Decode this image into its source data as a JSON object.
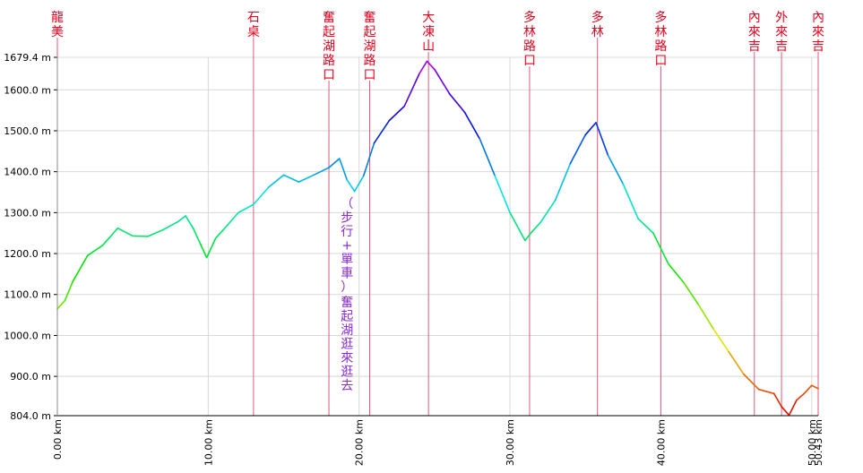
{
  "chart_data": {
    "type": "line",
    "title": "",
    "xlabel": "",
    "ylabel": "",
    "xlim": [
      0,
      50.43
    ],
    "ylim": [
      804.0,
      1679.4
    ],
    "y_ticks": [
      "804.0 m",
      "900.0 m",
      "1000.0 m",
      "1100.0 m",
      "1200.0 m",
      "1300.0 m",
      "1400.0 m",
      "1500.0 m",
      "1600.0 m",
      "1679.4 m"
    ],
    "y_tick_values": [
      804,
      900,
      1000,
      1100,
      1200,
      1300,
      1400,
      1500,
      1600,
      1679.4
    ],
    "x_ticks": [
      "0.00 km",
      "10.00 km",
      "20.00 km",
      "30.00 km",
      "40.00 km",
      "50.00 km",
      "50.43 km"
    ],
    "x_tick_values": [
      0,
      10,
      20,
      30,
      40,
      50,
      50.43
    ],
    "grid": true,
    "series": [
      {
        "x": [
          0,
          0.5,
          1.0,
          2.0,
          3.0,
          4.0,
          5.0,
          6.0,
          7.0,
          8.0,
          8.5,
          9.0,
          9.5,
          9.9,
          10.5,
          11.0,
          12.0,
          13.0,
          14.0,
          15.0,
          16.0,
          17.0,
          18.0,
          18.7,
          19.2,
          19.7,
          20.3,
          21.0,
          22.0,
          23.0,
          24.0,
          24.5,
          25.0,
          26.0,
          27.0,
          28.0,
          29.0,
          30.0,
          31.0,
          31.5,
          32.0,
          33.0,
          34.0,
          35.0,
          35.7,
          36.5,
          37.5,
          38.5,
          39.5,
          40.5,
          41.5,
          42.5,
          43.5,
          44.5,
          45.5,
          46.5,
          47.5,
          48.0,
          48.5,
          49.0,
          49.5,
          50.0,
          50.43
        ],
        "y": [
          1065,
          1085,
          1130,
          1195,
          1220,
          1262,
          1243,
          1242,
          1258,
          1278,
          1292,
          1262,
          1222,
          1190,
          1238,
          1258,
          1300,
          1320,
          1362,
          1392,
          1375,
          1392,
          1410,
          1432,
          1380,
          1352,
          1390,
          1470,
          1525,
          1560,
          1640,
          1670,
          1650,
          1590,
          1545,
          1480,
          1390,
          1300,
          1232,
          1255,
          1275,
          1330,
          1420,
          1490,
          1520,
          1440,
          1370,
          1285,
          1250,
          1175,
          1130,
          1075,
          1015,
          960,
          905,
          868,
          858,
          826,
          805,
          842,
          858,
          878,
          870
        ]
      }
    ],
    "markers": [
      {
        "name": "龍美",
        "x": 0
      },
      {
        "name": "石桌",
        "x": 13.0
      },
      {
        "name": "奮起湖路口",
        "x": 18.0
      },
      {
        "name": "奮起湖路口",
        "x": 20.7
      },
      {
        "name": "大凍山",
        "x": 24.6
      },
      {
        "name": "多林路口",
        "x": 31.3
      },
      {
        "name": "多林",
        "x": 35.8
      },
      {
        "name": "多林路口",
        "x": 40.0
      },
      {
        "name": "內來吉",
        "x": 46.2
      },
      {
        "name": "外來吉",
        "x": 48.0
      },
      {
        "name": "內來吉",
        "x": 50.43
      }
    ],
    "annotation": {
      "lines": [
        "（步行+單車）",
        "奮起湖逛來逛去"
      ]
    }
  }
}
